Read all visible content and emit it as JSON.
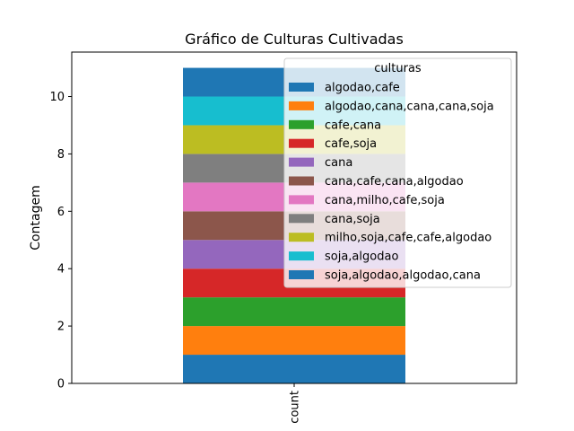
{
  "chart_data": {
    "type": "bar",
    "stacked": true,
    "title": "Gráfico de Culturas Cultivadas",
    "xlabel": "",
    "ylabel": "Contagem",
    "categories": [
      "count"
    ],
    "ylim": [
      0,
      11.55
    ],
    "yticks": [
      0,
      2,
      4,
      6,
      8,
      10
    ],
    "grid": false,
    "legend": {
      "title": "culturas",
      "placement": "top-right"
    },
    "series": [
      {
        "name": "algodao,cafe",
        "values": [
          1
        ],
        "color": "#1f77b4"
      },
      {
        "name": "algodao,cana,cana,cana,soja",
        "values": [
          1
        ],
        "color": "#ff7f0e"
      },
      {
        "name": "cafe,cana",
        "values": [
          1
        ],
        "color": "#2ca02c"
      },
      {
        "name": "cafe,soja",
        "values": [
          1
        ],
        "color": "#d62728"
      },
      {
        "name": "cana",
        "values": [
          1
        ],
        "color": "#9467bd"
      },
      {
        "name": "cana,cafe,cana,algodao",
        "values": [
          1
        ],
        "color": "#8c564b"
      },
      {
        "name": "cana,milho,cafe,soja",
        "values": [
          1
        ],
        "color": "#e377c2"
      },
      {
        "name": "cana,soja",
        "values": [
          1
        ],
        "color": "#7f7f7f"
      },
      {
        "name": "milho,soja,cafe,cafe,algodao",
        "values": [
          1
        ],
        "color": "#bcbd22"
      },
      {
        "name": "soja,algodao",
        "values": [
          1
        ],
        "color": "#17becf"
      },
      {
        "name": "soja,algodao,algodao,cana",
        "values": [
          1
        ],
        "color": "#1f77b4"
      }
    ]
  }
}
